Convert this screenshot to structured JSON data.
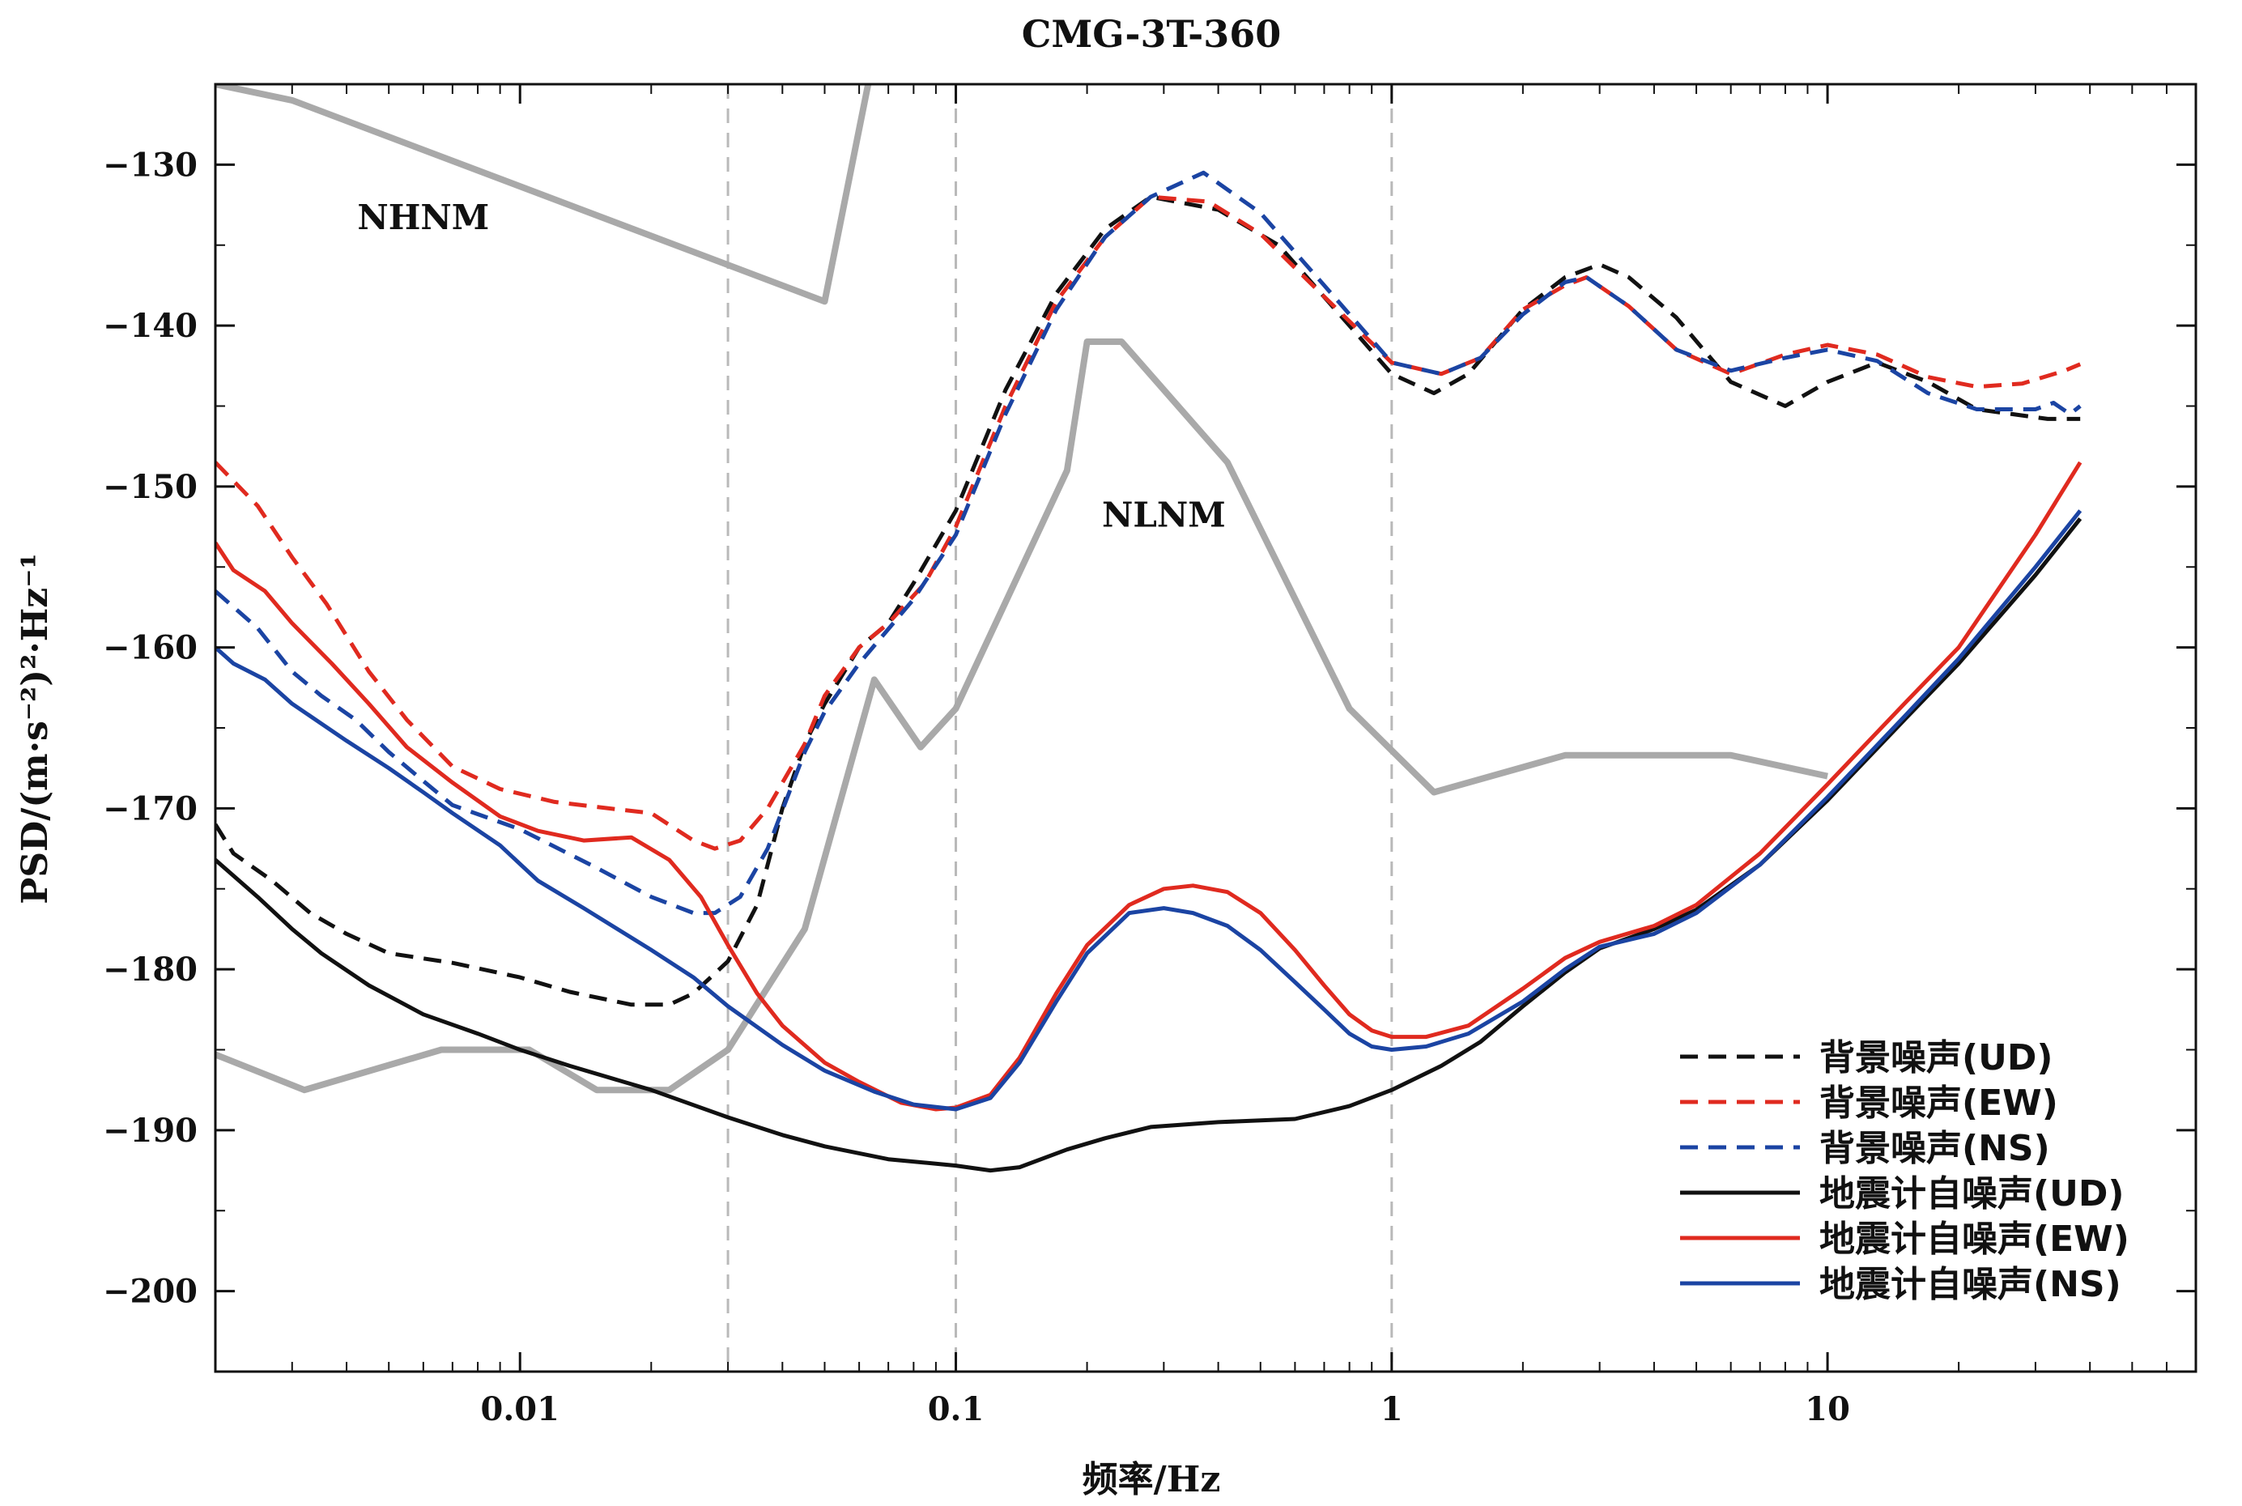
{
  "chart_data": {
    "type": "line",
    "title": "CMG-3T-360",
    "xlabel": "频率/Hz",
    "ylabel": "PSD/(m·s⁻²)²·Hz⁻¹",
    "x_scale": "log",
    "xlim": [
      0.002,
      70
    ],
    "ylim": [
      -205,
      -125
    ],
    "xticks": [
      0.01,
      0.1,
      1,
      10
    ],
    "xtick_labels": [
      "0.01",
      "0.1",
      "1",
      "10"
    ],
    "yticks": [
      -200,
      -190,
      -180,
      -170,
      -160,
      -150,
      -140,
      -130
    ],
    "ytick_labels": [
      "−200",
      "−190",
      "−180",
      "−170",
      "−160",
      "−150",
      "−140",
      "−130"
    ],
    "vlines": [
      0.03,
      0.1,
      1
    ],
    "legend_position": "bottom-right",
    "annotations": [
      {
        "text": "NHNM",
        "x": 0.006,
        "y": -134
      },
      {
        "text": "NLNM",
        "x": 0.3,
        "y": -152.5
      }
    ],
    "reference_models": [
      {
        "name": "NHNM",
        "color": "#a9a9a9",
        "points": [
          [
            0.002,
            -125
          ],
          [
            0.003,
            -126
          ],
          [
            0.05,
            -138.5
          ],
          [
            0.064,
            -124
          ]
        ]
      },
      {
        "name": "NLNM",
        "color": "#a9a9a9",
        "points": [
          [
            0.002,
            -185.3
          ],
          [
            0.0032,
            -187.5
          ],
          [
            0.0066,
            -185
          ],
          [
            0.0105,
            -185
          ],
          [
            0.015,
            -187.5
          ],
          [
            0.022,
            -187.5
          ],
          [
            0.03,
            -185
          ],
          [
            0.045,
            -177.5
          ],
          [
            0.065,
            -162
          ],
          [
            0.083,
            -166.2
          ],
          [
            0.1,
            -163.8
          ],
          [
            0.18,
            -149
          ],
          [
            0.2,
            -141
          ],
          [
            0.24,
            -141
          ],
          [
            0.42,
            -148.5
          ],
          [
            0.8,
            -163.8
          ],
          [
            1.25,
            -169
          ],
          [
            2.5,
            -166.7
          ],
          [
            6,
            -166.7
          ],
          [
            10,
            -168
          ]
        ]
      }
    ],
    "series": [
      {
        "name": "背景噪声(UD)",
        "style": "dashed",
        "color": "#111111",
        "points": [
          [
            0.002,
            -171
          ],
          [
            0.0022,
            -172.8
          ],
          [
            0.0027,
            -174.5
          ],
          [
            0.0033,
            -176.5
          ],
          [
            0.004,
            -177.8
          ],
          [
            0.005,
            -179
          ],
          [
            0.007,
            -179.6
          ],
          [
            0.01,
            -180.5
          ],
          [
            0.013,
            -181.4
          ],
          [
            0.018,
            -182.2
          ],
          [
            0.022,
            -182.2
          ],
          [
            0.025,
            -181.5
          ],
          [
            0.03,
            -179.5
          ],
          [
            0.035,
            -176
          ],
          [
            0.04,
            -170
          ],
          [
            0.045,
            -166
          ],
          [
            0.05,
            -163.5
          ],
          [
            0.06,
            -160
          ],
          [
            0.07,
            -158.5
          ],
          [
            0.08,
            -156
          ],
          [
            0.1,
            -151.5
          ],
          [
            0.13,
            -144
          ],
          [
            0.17,
            -138
          ],
          [
            0.22,
            -134
          ],
          [
            0.28,
            -132
          ],
          [
            0.4,
            -132.8
          ],
          [
            0.55,
            -135
          ],
          [
            0.8,
            -140
          ],
          [
            1,
            -143
          ],
          [
            1.25,
            -144.2
          ],
          [
            1.5,
            -143
          ],
          [
            2,
            -139
          ],
          [
            2.5,
            -137
          ],
          [
            3,
            -136.2
          ],
          [
            3.5,
            -137
          ],
          [
            4.5,
            -139.5
          ],
          [
            6,
            -143.5
          ],
          [
            8,
            -145
          ],
          [
            10,
            -143.5
          ],
          [
            13,
            -142.3
          ],
          [
            17,
            -143.5
          ],
          [
            22,
            -145.2
          ],
          [
            32,
            -145.8
          ],
          [
            38,
            -145.8
          ]
        ]
      },
      {
        "name": "背景噪声(EW)",
        "style": "dashed",
        "color": "#e02a1f",
        "points": [
          [
            0.002,
            -148.5
          ],
          [
            0.0025,
            -151.2
          ],
          [
            0.003,
            -154.4
          ],
          [
            0.0036,
            -157.3
          ],
          [
            0.0045,
            -161.5
          ],
          [
            0.0055,
            -164.5
          ],
          [
            0.007,
            -167.4
          ],
          [
            0.009,
            -168.8
          ],
          [
            0.012,
            -169.6
          ],
          [
            0.016,
            -170
          ],
          [
            0.02,
            -170.3
          ],
          [
            0.025,
            -172
          ],
          [
            0.028,
            -172.5
          ],
          [
            0.032,
            -172
          ],
          [
            0.037,
            -170
          ],
          [
            0.045,
            -166
          ],
          [
            0.05,
            -163
          ],
          [
            0.06,
            -160
          ],
          [
            0.07,
            -158.5
          ],
          [
            0.085,
            -156
          ],
          [
            0.1,
            -152.5
          ],
          [
            0.13,
            -145
          ],
          [
            0.17,
            -138.5
          ],
          [
            0.22,
            -134.5
          ],
          [
            0.28,
            -132
          ],
          [
            0.38,
            -132.3
          ],
          [
            0.5,
            -134.3
          ],
          [
            0.7,
            -138.2
          ],
          [
            1,
            -142.3
          ],
          [
            1.3,
            -143
          ],
          [
            1.6,
            -142
          ],
          [
            2,
            -139
          ],
          [
            2.5,
            -137.5
          ],
          [
            2.8,
            -137
          ],
          [
            3.5,
            -138.8
          ],
          [
            4.5,
            -141.5
          ],
          [
            6,
            -143
          ],
          [
            8,
            -141.8
          ],
          [
            10,
            -141.2
          ],
          [
            13,
            -141.8
          ],
          [
            17,
            -143.2
          ],
          [
            22,
            -143.8
          ],
          [
            28,
            -143.6
          ],
          [
            35,
            -142.8
          ],
          [
            38,
            -142.4
          ]
        ]
      },
      {
        "name": "背景噪声(NS)",
        "style": "dashed",
        "color": "#1b44a3",
        "points": [
          [
            0.002,
            -156.5
          ],
          [
            0.0025,
            -158.8
          ],
          [
            0.003,
            -161.5
          ],
          [
            0.0035,
            -163
          ],
          [
            0.0042,
            -164.5
          ],
          [
            0.005,
            -166.5
          ],
          [
            0.006,
            -168.3
          ],
          [
            0.007,
            -169.8
          ],
          [
            0.01,
            -171.3
          ],
          [
            0.015,
            -173.7
          ],
          [
            0.02,
            -175.5
          ],
          [
            0.025,
            -176.5
          ],
          [
            0.028,
            -176.5
          ],
          [
            0.032,
            -175.5
          ],
          [
            0.037,
            -172.5
          ],
          [
            0.045,
            -166.5
          ],
          [
            0.05,
            -164
          ],
          [
            0.06,
            -161
          ],
          [
            0.08,
            -157
          ],
          [
            0.1,
            -153
          ],
          [
            0.13,
            -145.5
          ],
          [
            0.17,
            -139
          ],
          [
            0.22,
            -134.5
          ],
          [
            0.28,
            -132
          ],
          [
            0.37,
            -130.5
          ],
          [
            0.5,
            -133
          ],
          [
            0.7,
            -137.5
          ],
          [
            1,
            -142.3
          ],
          [
            1.3,
            -143
          ],
          [
            1.6,
            -142
          ],
          [
            2,
            -139.3
          ],
          [
            2.5,
            -137.3
          ],
          [
            2.8,
            -137
          ],
          [
            3.5,
            -138.8
          ],
          [
            4.5,
            -141.5
          ],
          [
            6,
            -142.8
          ],
          [
            8,
            -142
          ],
          [
            10,
            -141.5
          ],
          [
            13,
            -142.2
          ],
          [
            17,
            -144.2
          ],
          [
            22,
            -145.2
          ],
          [
            30,
            -145.2
          ],
          [
            33,
            -144.8
          ],
          [
            36,
            -145.5
          ],
          [
            38,
            -145
          ]
        ]
      },
      {
        "name": "地震计自噪声(UD)",
        "style": "solid",
        "color": "#111111",
        "points": [
          [
            0.002,
            -173.2
          ],
          [
            0.0025,
            -175.5
          ],
          [
            0.003,
            -177.5
          ],
          [
            0.0035,
            -179
          ],
          [
            0.0045,
            -181
          ],
          [
            0.006,
            -182.8
          ],
          [
            0.008,
            -184
          ],
          [
            0.01,
            -185
          ],
          [
            0.013,
            -186
          ],
          [
            0.02,
            -187.5
          ],
          [
            0.03,
            -189.2
          ],
          [
            0.04,
            -190.3
          ],
          [
            0.05,
            -191
          ],
          [
            0.07,
            -191.8
          ],
          [
            0.1,
            -192.2
          ],
          [
            0.12,
            -192.5
          ],
          [
            0.14,
            -192.3
          ],
          [
            0.18,
            -191.2
          ],
          [
            0.22,
            -190.5
          ],
          [
            0.28,
            -189.8
          ],
          [
            0.4,
            -189.5
          ],
          [
            0.6,
            -189.3
          ],
          [
            0.8,
            -188.5
          ],
          [
            1,
            -187.5
          ],
          [
            1.3,
            -186
          ],
          [
            1.6,
            -184.5
          ],
          [
            2,
            -182.3
          ],
          [
            2.5,
            -180.2
          ],
          [
            3,
            -178.7
          ],
          [
            4,
            -177.5
          ],
          [
            5,
            -176.3
          ],
          [
            7,
            -173.5
          ],
          [
            10,
            -169.5
          ],
          [
            15,
            -164.5
          ],
          [
            20,
            -161
          ],
          [
            30,
            -155.5
          ],
          [
            38,
            -152
          ]
        ]
      },
      {
        "name": "地震计自噪声(EW)",
        "style": "solid",
        "color": "#e02a1f",
        "points": [
          [
            0.002,
            -153.5
          ],
          [
            0.0022,
            -155.2
          ],
          [
            0.0026,
            -156.5
          ],
          [
            0.003,
            -158.5
          ],
          [
            0.0037,
            -161
          ],
          [
            0.0045,
            -163.5
          ],
          [
            0.0055,
            -166.2
          ],
          [
            0.007,
            -168.4
          ],
          [
            0.009,
            -170.5
          ],
          [
            0.011,
            -171.4
          ],
          [
            0.014,
            -172
          ],
          [
            0.018,
            -171.8
          ],
          [
            0.022,
            -173.2
          ],
          [
            0.026,
            -175.5
          ],
          [
            0.03,
            -178.5
          ],
          [
            0.035,
            -181.5
          ],
          [
            0.04,
            -183.5
          ],
          [
            0.05,
            -185.8
          ],
          [
            0.06,
            -187
          ],
          [
            0.075,
            -188.3
          ],
          [
            0.09,
            -188.7
          ],
          [
            0.1,
            -188.6
          ],
          [
            0.12,
            -187.8
          ],
          [
            0.14,
            -185.5
          ],
          [
            0.17,
            -181.5
          ],
          [
            0.2,
            -178.5
          ],
          [
            0.25,
            -176
          ],
          [
            0.3,
            -175
          ],
          [
            0.35,
            -174.8
          ],
          [
            0.42,
            -175.2
          ],
          [
            0.5,
            -176.5
          ],
          [
            0.6,
            -178.8
          ],
          [
            0.7,
            -181
          ],
          [
            0.8,
            -182.8
          ],
          [
            0.9,
            -183.8
          ],
          [
            1,
            -184.2
          ],
          [
            1.2,
            -184.2
          ],
          [
            1.5,
            -183.5
          ],
          [
            2,
            -181.2
          ],
          [
            2.5,
            -179.3
          ],
          [
            3,
            -178.3
          ],
          [
            4,
            -177.3
          ],
          [
            5,
            -176
          ],
          [
            7,
            -172.8
          ],
          [
            10,
            -168.5
          ],
          [
            15,
            -163.5
          ],
          [
            20,
            -160
          ],
          [
            30,
            -153
          ],
          [
            38,
            -148.5
          ]
        ]
      },
      {
        "name": "地震计自噪声(NS)",
        "style": "solid",
        "color": "#1b44a3",
        "points": [
          [
            0.002,
            -160
          ],
          [
            0.0022,
            -161
          ],
          [
            0.0026,
            -162
          ],
          [
            0.003,
            -163.5
          ],
          [
            0.004,
            -165.8
          ],
          [
            0.005,
            -167.5
          ],
          [
            0.006,
            -169
          ],
          [
            0.007,
            -170.3
          ],
          [
            0.009,
            -172.3
          ],
          [
            0.011,
            -174.5
          ],
          [
            0.014,
            -176.2
          ],
          [
            0.02,
            -178.8
          ],
          [
            0.025,
            -180.5
          ],
          [
            0.03,
            -182.3
          ],
          [
            0.04,
            -184.7
          ],
          [
            0.05,
            -186.3
          ],
          [
            0.065,
            -187.6
          ],
          [
            0.08,
            -188.4
          ],
          [
            0.1,
            -188.7
          ],
          [
            0.12,
            -188
          ],
          [
            0.14,
            -185.8
          ],
          [
            0.17,
            -182
          ],
          [
            0.2,
            -179
          ],
          [
            0.25,
            -176.5
          ],
          [
            0.3,
            -176.2
          ],
          [
            0.35,
            -176.5
          ],
          [
            0.42,
            -177.3
          ],
          [
            0.5,
            -178.8
          ],
          [
            0.6,
            -180.8
          ],
          [
            0.7,
            -182.5
          ],
          [
            0.8,
            -184
          ],
          [
            0.9,
            -184.8
          ],
          [
            1,
            -185
          ],
          [
            1.2,
            -184.8
          ],
          [
            1.5,
            -184
          ],
          [
            2,
            -182
          ],
          [
            2.5,
            -180
          ],
          [
            3,
            -178.6
          ],
          [
            4,
            -177.8
          ],
          [
            5,
            -176.5
          ],
          [
            7,
            -173.5
          ],
          [
            10,
            -169.3
          ],
          [
            15,
            -164.3
          ],
          [
            20,
            -160.7
          ],
          [
            30,
            -155
          ],
          [
            38,
            -151.5
          ]
        ]
      }
    ]
  }
}
